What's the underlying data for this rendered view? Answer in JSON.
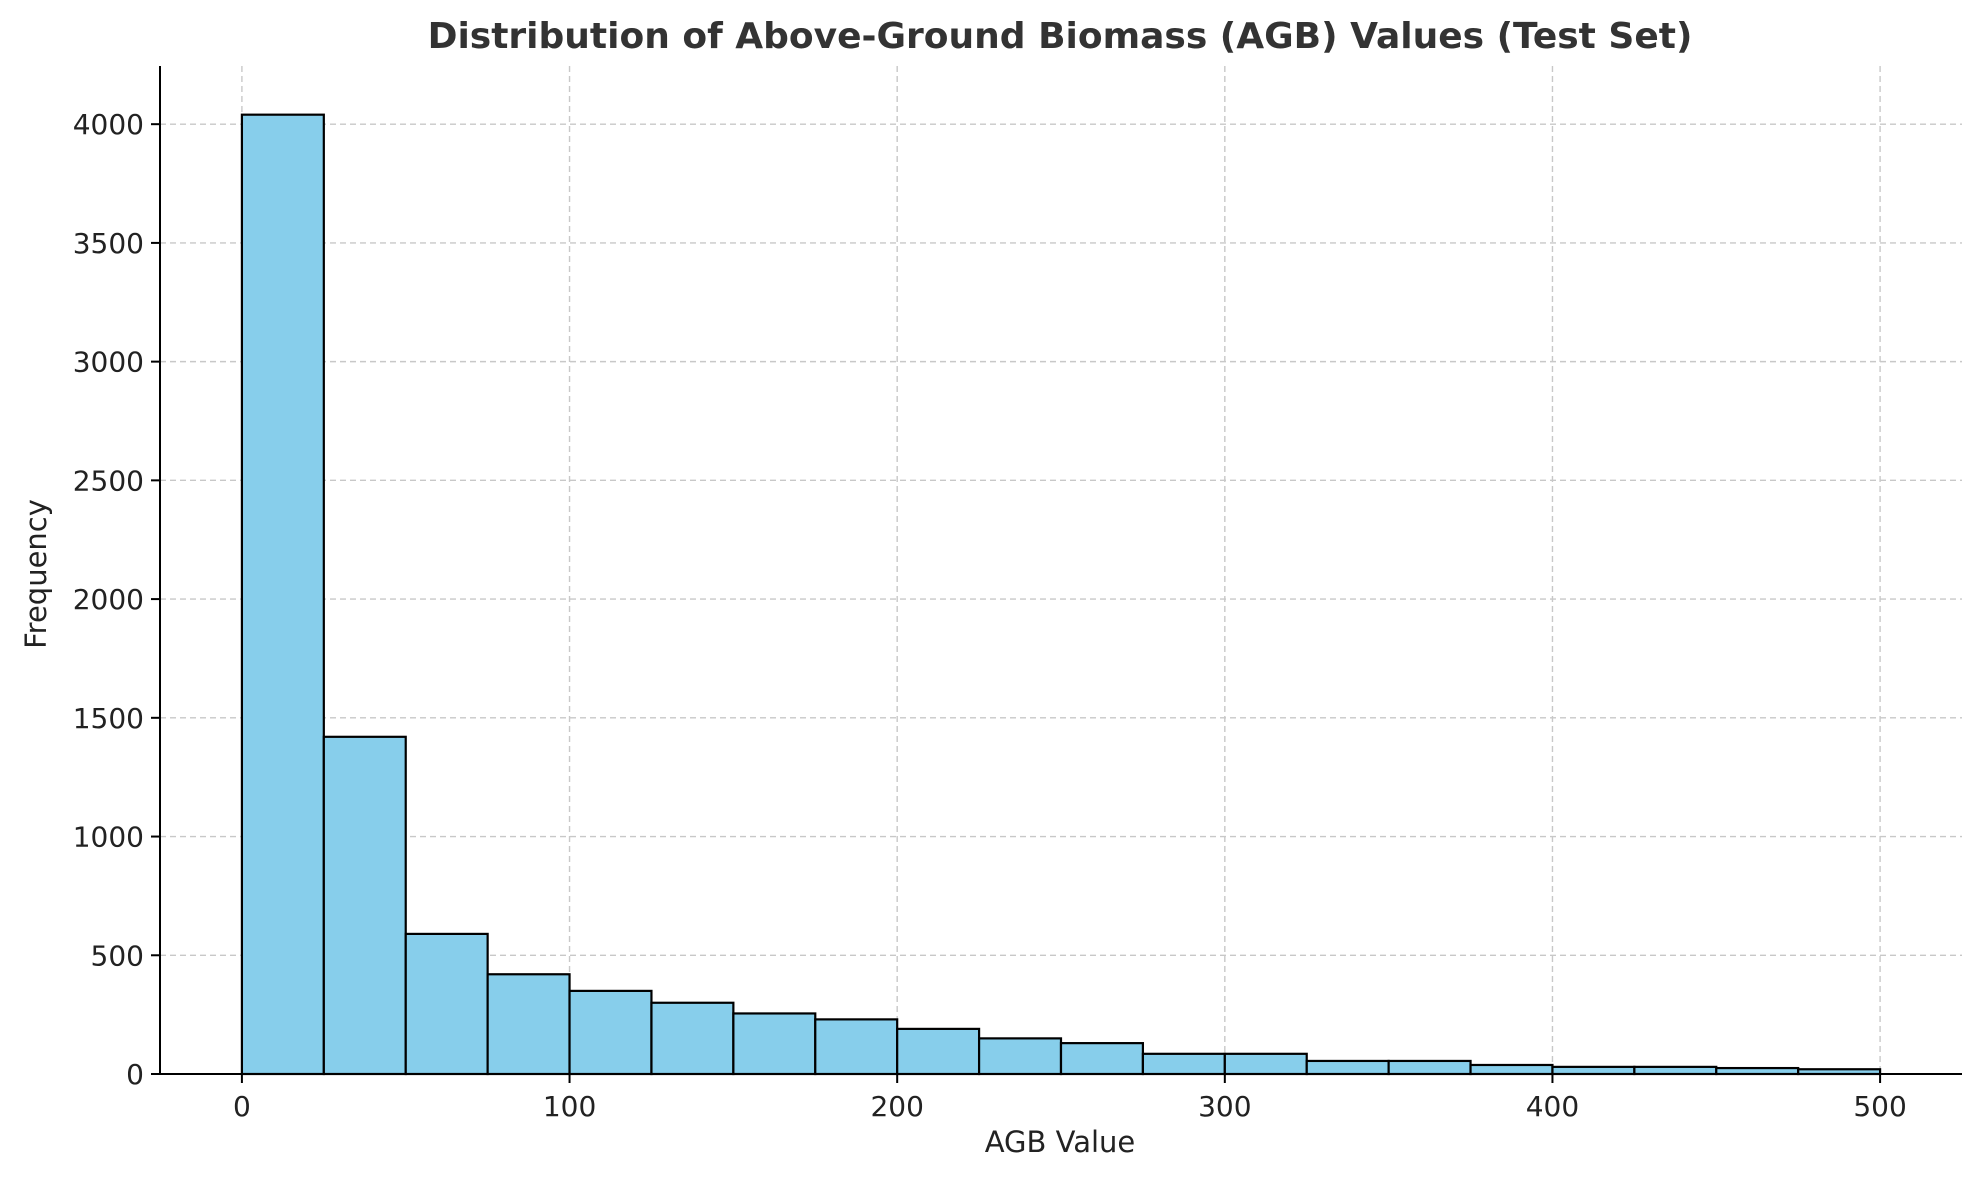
{
  "chart_data": {
    "type": "bar",
    "title": "Distribution of Above-Ground Biomass (AGB) Values (Test Set)",
    "xlabel": "AGB Value",
    "ylabel": "Frequency",
    "xlim": [
      -25,
      525
    ],
    "ylim": [
      0,
      4245
    ],
    "x_ticks": [
      0,
      100,
      200,
      300,
      400,
      500
    ],
    "y_ticks": [
      0,
      500,
      1000,
      1500,
      2000,
      2500,
      3000,
      3500,
      4000
    ],
    "grid": true,
    "legend": "none",
    "bar_color": "#87ceeb",
    "edge_color": "#000000",
    "bins": [
      {
        "start": 0,
        "end": 25,
        "value": 4040
      },
      {
        "start": 25,
        "end": 50,
        "value": 1420
      },
      {
        "start": 50,
        "end": 75,
        "value": 590
      },
      {
        "start": 75,
        "end": 100,
        "value": 420
      },
      {
        "start": 100,
        "end": 125,
        "value": 350
      },
      {
        "start": 125,
        "end": 150,
        "value": 300
      },
      {
        "start": 150,
        "end": 175,
        "value": 255
      },
      {
        "start": 175,
        "end": 200,
        "value": 230
      },
      {
        "start": 200,
        "end": 225,
        "value": 190
      },
      {
        "start": 225,
        "end": 250,
        "value": 150
      },
      {
        "start": 250,
        "end": 275,
        "value": 130
      },
      {
        "start": 275,
        "end": 300,
        "value": 85
      },
      {
        "start": 300,
        "end": 325,
        "value": 85
      },
      {
        "start": 325,
        "end": 350,
        "value": 55
      },
      {
        "start": 350,
        "end": 375,
        "value": 55
      },
      {
        "start": 375,
        "end": 400,
        "value": 38
      },
      {
        "start": 400,
        "end": 425,
        "value": 30
      },
      {
        "start": 425,
        "end": 450,
        "value": 30
      },
      {
        "start": 450,
        "end": 475,
        "value": 25
      },
      {
        "start": 475,
        "end": 500,
        "value": 20
      }
    ]
  }
}
